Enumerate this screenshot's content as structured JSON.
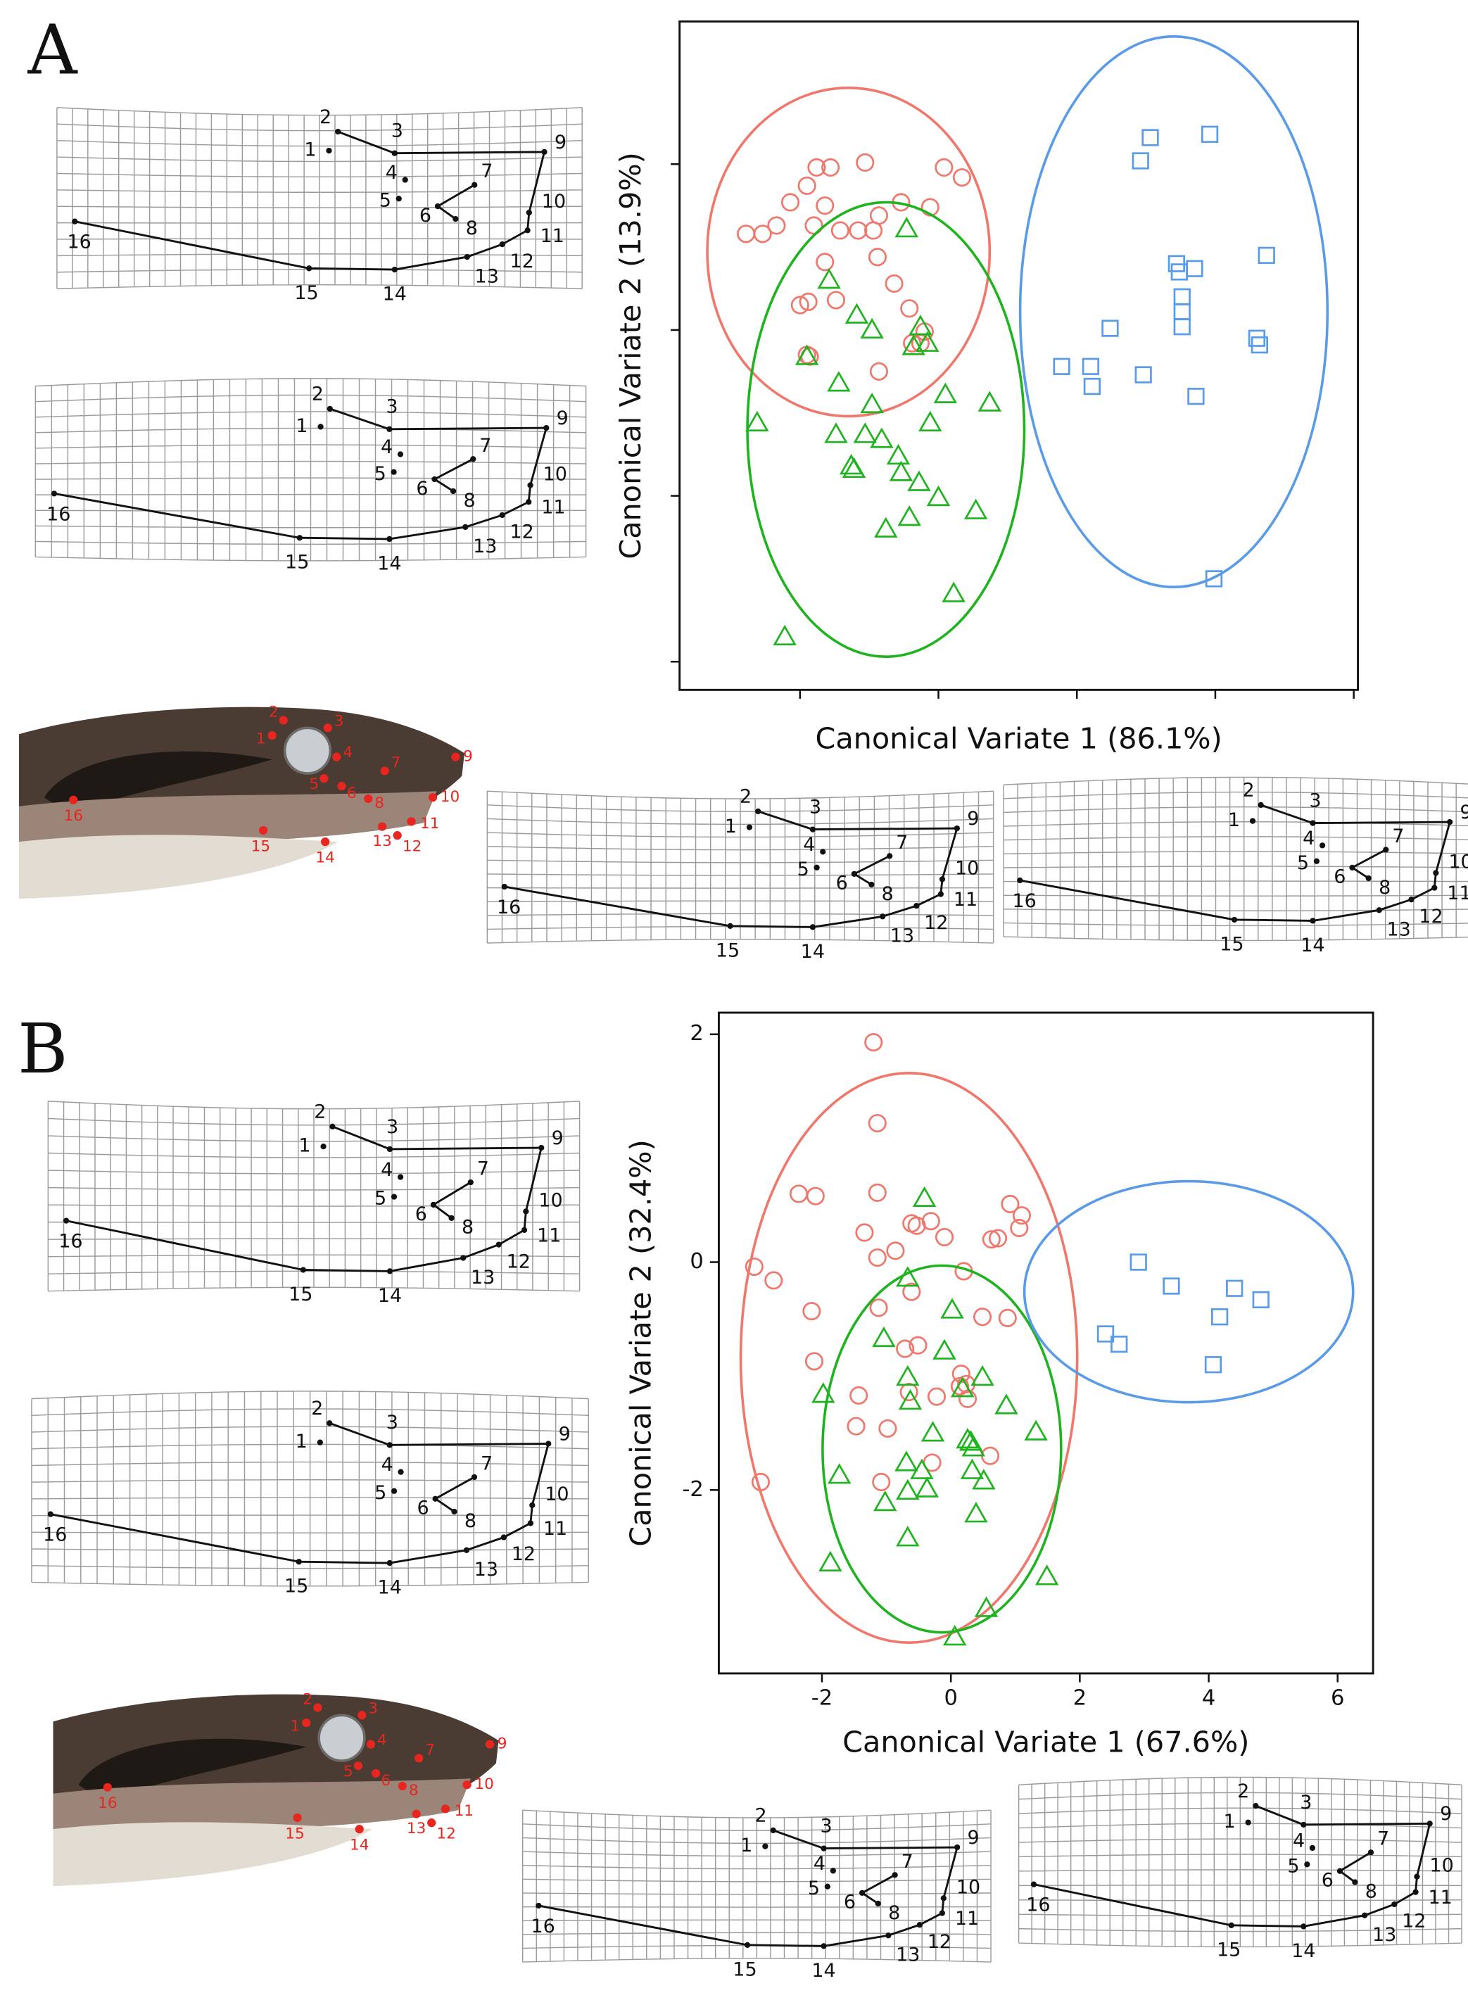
{
  "panels": [
    {
      "label": "A"
    },
    {
      "label": "B"
    }
  ],
  "landmarks": [
    "1",
    "2",
    "3",
    "4",
    "5",
    "6",
    "7",
    "8",
    "9",
    "10",
    "11",
    "12",
    "13",
    "14",
    "15",
    "16"
  ],
  "chart_data": [
    {
      "type": "scatter",
      "xlabel": "Canonical Variate 1 (86.1%)",
      "ylabel": "Canonical Variate 2 (13.9%)",
      "xlim": [
        -0.87,
        4.03
      ],
      "ylim": [
        -0.17,
        3.86
      ],
      "xticks": [
        0,
        1,
        2,
        3,
        4
      ],
      "yticks": [
        0,
        1,
        2,
        3
      ],
      "tick_labels": false,
      "series": [
        {
          "color": "#f0776b",
          "marker": "circle",
          "x": [
            -0.39,
            -0.27,
            -0.17,
            -0.07,
            0.05,
            0.12,
            0.22,
            0.47,
            0.18,
            0.29,
            0.1,
            0.42,
            0.53,
            0.57,
            0.73,
            0.94,
            1.04,
            1.17,
            0.18,
            0.56,
            0.68,
            0,
            0.06,
            0.26,
            0.79,
            0.9,
            0.81,
            0.05,
            0.07,
            0.57,
            0.87
          ],
          "values": [
            2.58,
            2.58,
            2.63,
            2.77,
            2.87,
            2.98,
            2.98,
            3.01,
            2.75,
            2.6,
            2.63,
            2.6,
            2.6,
            2.69,
            2.77,
            2.74,
            2.98,
            2.92,
            2.41,
            2.44,
            2.28,
            2.15,
            2.17,
            2.18,
            2.13,
            1.99,
            1.92,
            1.85,
            1.84,
            1.75,
            1.92
          ],
          "ellipse": {
            "cx": 0.35,
            "cy": 2.47,
            "rx": 1.02,
            "ry": 0.99
          }
        },
        {
          "color": "#1fb320",
          "marker": "triangle",
          "x": [
            0.77,
            0.21,
            0.41,
            0.52,
            0.87,
            0.92,
            0.05,
            0.28,
            0.82,
            -0.31,
            0.52,
            0.26,
            0.47,
            0.59,
            0.37,
            0.39,
            0.71,
            0.73,
            0.86,
            0.94,
            1.05,
            1.37,
            1.0,
            0.62,
            0.79,
            1.27,
            1.11,
            -0.11
          ],
          "values": [
            2.61,
            2.3,
            2.09,
            2.0,
            2.02,
            1.92,
            1.84,
            1.68,
            1.9,
            1.44,
            1.55,
            1.37,
            1.37,
            1.34,
            1.18,
            1.16,
            1.24,
            1.14,
            1.08,
            1.44,
            1.61,
            1.56,
            0.99,
            0.8,
            0.87,
            0.91,
            0.41,
            0.15
          ],
          "ellipse": {
            "cx": 0.62,
            "cy": 1.4,
            "rx": 1.0,
            "ry": 1.37
          }
        },
        {
          "color": "#5a9be8",
          "marker": "square",
          "x": [
            2.53,
            2.96,
            2.46,
            2.72,
            2.85,
            2.74,
            3.37,
            2.76,
            2.76,
            2.76,
            2.24,
            3.3,
            3.32,
            1.89,
            2.1,
            2.11,
            2.48,
            2.86,
            2.99
          ],
          "values": [
            3.16,
            3.18,
            3.02,
            2.4,
            2.37,
            2.35,
            2.45,
            2.2,
            2.11,
            2.02,
            2.01,
            1.95,
            1.91,
            1.78,
            1.78,
            1.66,
            1.73,
            1.6,
            0.5
          ],
          "ellipse": {
            "cx": 2.7,
            "cy": 2.11,
            "rx": 1.11,
            "ry": 1.66
          }
        }
      ]
    },
    {
      "type": "scatter",
      "xlabel": "Canonical Variate 1 (67.6%)",
      "ylabel": "Canonical Variate 2 (32.4%)",
      "xlim": [
        -3.6,
        6.55
      ],
      "ylim": [
        -3.61,
        2.19
      ],
      "xticks": [
        -2,
        0,
        2,
        4,
        6
      ],
      "yticks": [
        -2,
        0,
        2
      ],
      "tick_labels": true,
      "series": [
        {
          "color": "#f0776b",
          "marker": "circle",
          "x": [
            -1.2,
            -1.14,
            -2.36,
            -2.1,
            -1.14,
            -0.61,
            -0.53,
            -0.31,
            -1.34,
            -0.1,
            -0.86,
            0.92,
            1.1,
            1.06,
            0.73,
            0.63,
            -3.05,
            -2.75,
            -1.14,
            -0.61,
            0.2,
            -2.16,
            -1.12,
            -0.71,
            -0.51,
            -2.12,
            0.16,
            0.49,
            0.88,
            -1.43,
            -0.65,
            -0.22,
            0.24,
            0.26,
            0.14,
            -0.98,
            -1.47,
            -0.29,
            0.61,
            -1.08,
            -2.95
          ],
          "values": [
            1.93,
            1.22,
            0.6,
            0.58,
            0.61,
            0.34,
            0.32,
            0.36,
            0.26,
            0.22,
            0.1,
            0.51,
            0.41,
            0.3,
            0.21,
            0.2,
            -0.04,
            -0.16,
            0.04,
            -0.26,
            -0.08,
            -0.43,
            -0.4,
            -0.76,
            -0.73,
            -0.87,
            -0.98,
            -0.48,
            -0.49,
            -1.17,
            -1.14,
            -1.18,
            -1.07,
            -1.2,
            -1.09,
            -1.46,
            -1.44,
            -1.76,
            -1.7,
            -1.93,
            -1.93
          ],
          "ellipse": {
            "cx": -0.65,
            "cy": -0.84,
            "rx": 2.61,
            "ry": 2.5
          }
        },
        {
          "color": "#1fb320",
          "marker": "triangle",
          "x": [
            -0.41,
            -0.67,
            0.02,
            -1.04,
            -0.1,
            -0.67,
            0.49,
            0.18,
            -1.98,
            -0.63,
            0.86,
            -0.28,
            1.32,
            0.26,
            0.31,
            0.35,
            -0.69,
            0.33,
            -0.45,
            0.51,
            -0.37,
            -1.73,
            -0.67,
            -1.02,
            0.39,
            -0.67,
            -1.87,
            1.49,
            0.55,
            0.06
          ],
          "values": [
            0.56,
            -0.14,
            -0.42,
            -0.67,
            -0.78,
            -1.01,
            -1.01,
            -1.11,
            -1.16,
            -1.22,
            -1.26,
            -1.5,
            -1.49,
            -1.56,
            -1.58,
            -1.63,
            -1.76,
            -1.83,
            -1.83,
            -1.92,
            -1.99,
            -1.87,
            -2.01,
            -2.11,
            -2.21,
            -2.42,
            -2.64,
            -2.76,
            -3.04,
            -3.29
          ],
          "ellipse": {
            "cx": -0.14,
            "cy": -1.64,
            "rx": 1.85,
            "ry": 1.61
          }
        },
        {
          "color": "#5a9be8",
          "marker": "square",
          "x": [
            2.91,
            3.42,
            4.4,
            4.81,
            4.17,
            2.4,
            2.61,
            4.07
          ],
          "values": [
            0,
            -0.21,
            -0.23,
            -0.33,
            -0.48,
            -0.63,
            -0.72,
            -0.9
          ],
          "ellipse": {
            "cx": 3.69,
            "cy": -0.26,
            "rx": 2.55,
            "ry": 0.97
          }
        }
      ]
    }
  ]
}
